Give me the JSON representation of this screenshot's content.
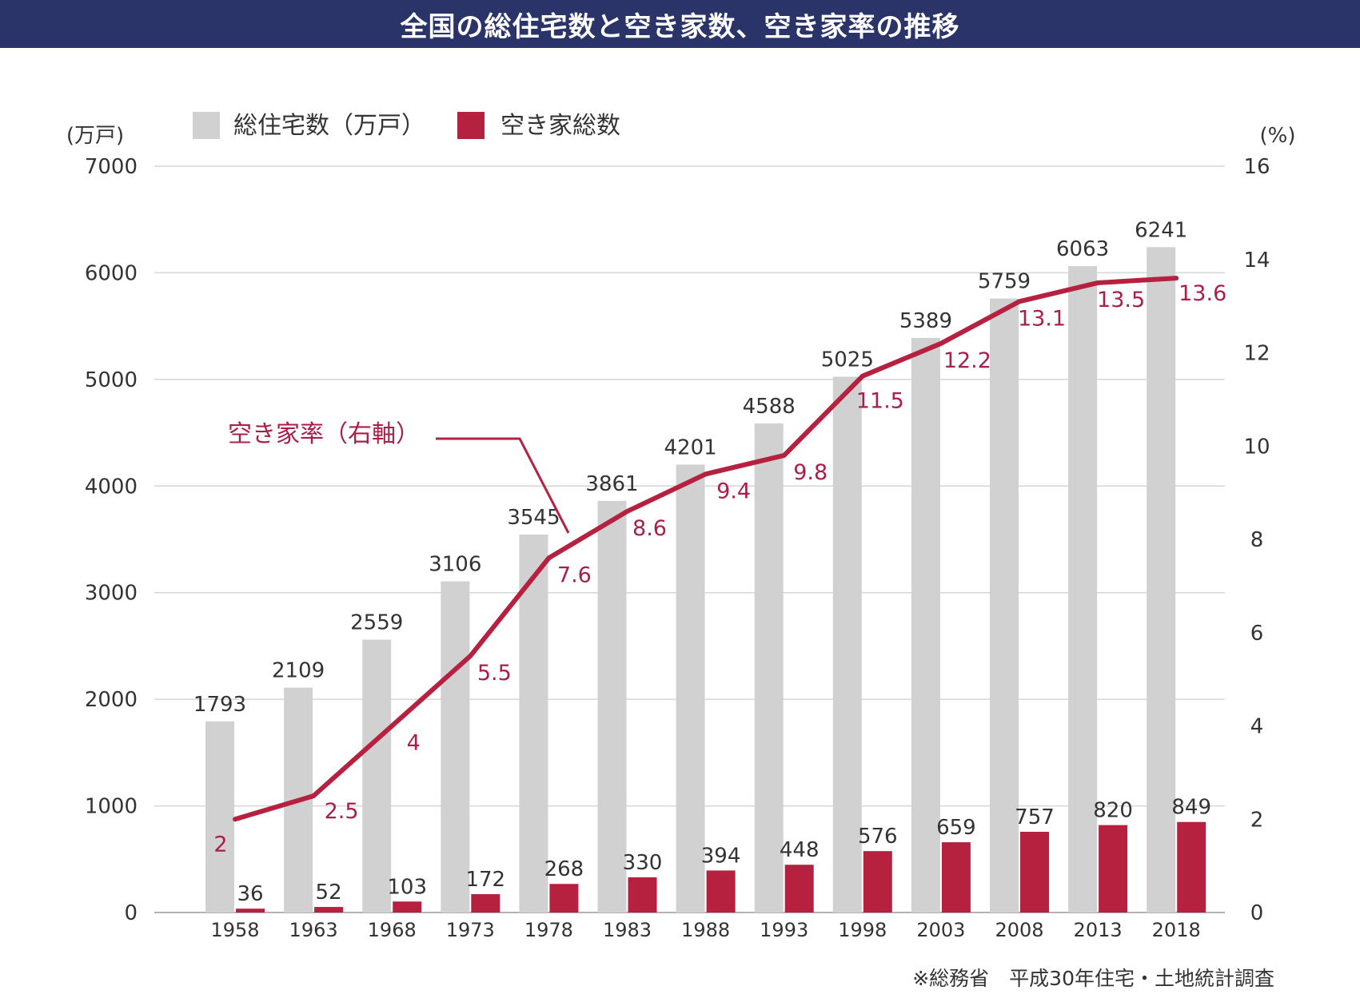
{
  "header": {
    "title": "全国の総住宅数と空き家数、空き家率の推移"
  },
  "source": "※総務省　平成30年住宅・土地統計調査",
  "colors": {
    "title_bg": "#2b3468",
    "bar_total": "#d0d1d0",
    "bar_vacant": "#b5213f",
    "line_rate": "#b5213f",
    "label_rate": "#a8204a",
    "text": "#333333",
    "grid": "#d6d6d6"
  },
  "chart_data": {
    "type": "bar",
    "categories": [
      "1958",
      "1963",
      "1968",
      "1973",
      "1978",
      "1983",
      "1988",
      "1993",
      "1998",
      "2003",
      "2008",
      "2013",
      "2018"
    ],
    "y_left": {
      "label": "(万戸)",
      "ylim": [
        0,
        7000
      ],
      "ticks": [
        "0",
        "1000",
        "2000",
        "3000",
        "4000",
        "5000",
        "6000",
        "7000"
      ]
    },
    "y_right": {
      "label": "(%)",
      "ylim": [
        0,
        16
      ],
      "ticks": [
        "0",
        "2",
        "4",
        "6",
        "8",
        "10",
        "12",
        "14",
        "16"
      ]
    },
    "grid": true,
    "legend_position": "top",
    "series": [
      {
        "name": "総住宅数（万戸）",
        "type": "bar",
        "axis": "left",
        "values": [
          1793,
          2109,
          2559,
          3106,
          3545,
          3861,
          4201,
          4588,
          5025,
          5389,
          5759,
          6063,
          6241
        ]
      },
      {
        "name": "空き家総数",
        "type": "bar",
        "axis": "left",
        "values": [
          36,
          52,
          103,
          172,
          268,
          330,
          394,
          448,
          576,
          659,
          757,
          820,
          849
        ]
      },
      {
        "name": "空き家率（右軸）",
        "type": "line",
        "axis": "right",
        "values": [
          2,
          2.5,
          4,
          5.5,
          7.6,
          8.6,
          9.4,
          9.8,
          11.5,
          12.2,
          13.1,
          13.5,
          13.6
        ]
      }
    ]
  }
}
